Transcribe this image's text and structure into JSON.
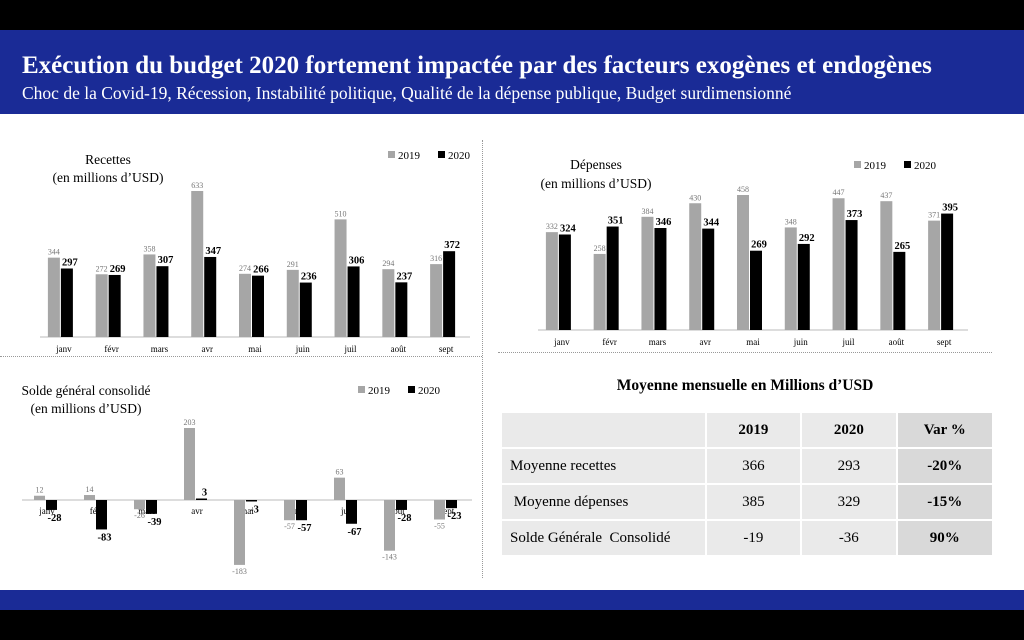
{
  "header": {
    "title": "Exécution du budget 2020 fortement impactée par des facteurs exogènes et endogènes",
    "subtitle": "Choc de la Covid-19, Récession, Instabilité politique, Qualité de la dépense publique, Budget surdimensionné"
  },
  "colors": {
    "header_bg": "#1a2b96",
    "series_2019": "#a6a6a6",
    "series_2020": "#000000"
  },
  "chart_data": [
    {
      "id": "recettes",
      "type": "bar",
      "title_lines": [
        "Recettes",
        "(en millions d’USD)"
      ],
      "categories": [
        "janv",
        "févr",
        "mars",
        "avr",
        "mai",
        "juin",
        "juil",
        "août",
        "sept"
      ],
      "series": [
        {
          "name": "2019",
          "values": [
            344,
            272,
            358,
            633,
            274,
            291,
            510,
            294,
            316
          ]
        },
        {
          "name": "2020",
          "values": [
            297,
            269,
            307,
            347,
            266,
            236,
            306,
            237,
            372
          ]
        }
      ],
      "ylim": [
        0,
        633
      ],
      "legend": "top-right"
    },
    {
      "id": "depenses",
      "type": "bar",
      "title_lines": [
        "Dépenses",
        "(en  millions d’USD)"
      ],
      "categories": [
        "janv",
        "févr",
        "mars",
        "avr",
        "mai",
        "juin",
        "juil",
        "août",
        "sept"
      ],
      "series": [
        {
          "name": "2019",
          "values": [
            332,
            258,
            384,
            430,
            458,
            348,
            447,
            437,
            371
          ]
        },
        {
          "name": "2020",
          "values": [
            324,
            351,
            346,
            344,
            269,
            292,
            373,
            265,
            395
          ]
        }
      ],
      "ylim": [
        0,
        458
      ],
      "legend": "top-right"
    },
    {
      "id": "solde",
      "type": "bar",
      "title_lines": [
        "Solde général consolidé",
        "(en millions d’USD)"
      ],
      "categories": [
        "janv",
        "févr",
        "mars",
        "avr",
        "mai",
        "juin",
        "juil",
        "août",
        "sept"
      ],
      "series": [
        {
          "name": "2019",
          "values": [
            12,
            14,
            -26,
            203,
            -183,
            -57,
            63,
            -143,
            -55
          ]
        },
        {
          "name": "2020",
          "values": [
            -28,
            -83,
            -39,
            3,
            -3,
            -57,
            -67,
            -28,
            -23
          ]
        }
      ],
      "ylim": [
        -183,
        203
      ],
      "legend": "top-right"
    }
  ],
  "table": {
    "title": "Moyenne mensuelle en Millions d’USD",
    "headers": [
      "",
      "2019",
      "2020",
      "Var %"
    ],
    "rows": [
      {
        "label": "Moyenne recettes",
        "v2019": "366",
        "v2020": "293",
        "var": "-20%"
      },
      {
        "label": " Moyenne dépenses",
        "v2019": "385",
        "v2020": "329",
        "var": "-15%"
      },
      {
        "label": "Solde Générale  Consolidé",
        "v2019": "-19",
        "v2020": "-36",
        "var": "90%"
      }
    ]
  }
}
